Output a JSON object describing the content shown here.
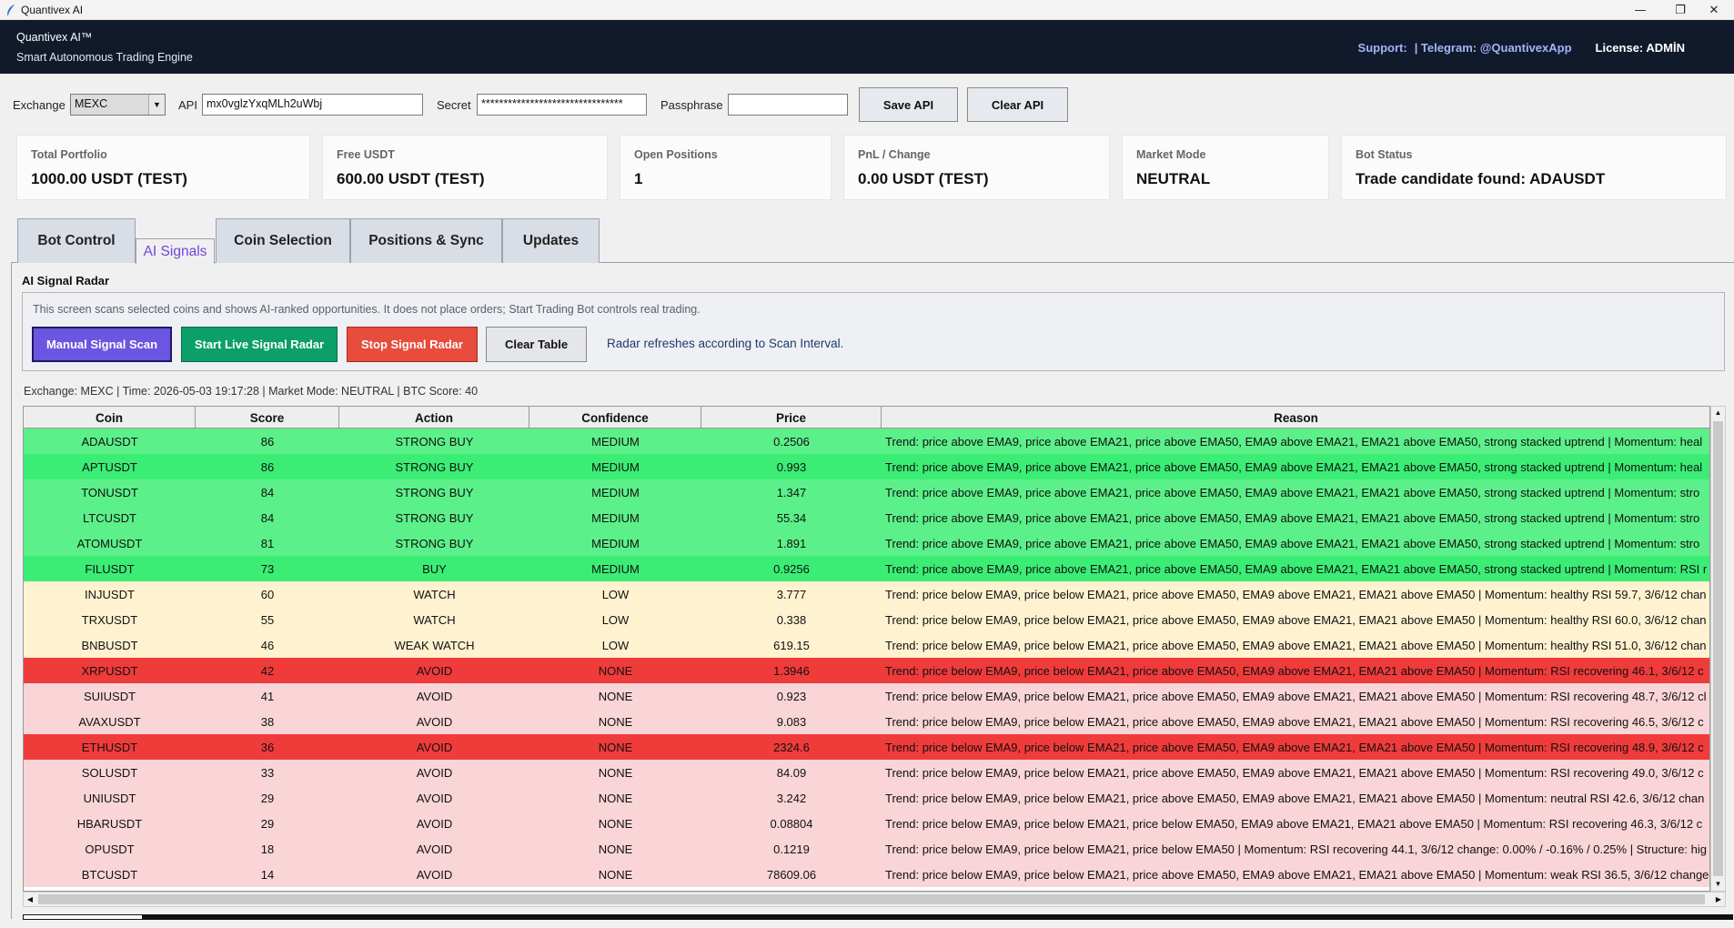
{
  "window": {
    "title": "Quantivex AI"
  },
  "header": {
    "brand": "Quantivex AI™",
    "tagline": "Smart Autonomous Trading Engine",
    "support": "Support:",
    "telegram": "| Telegram: @QuantivexApp",
    "license": "License: ADMİN"
  },
  "api": {
    "exchange_label": "Exchange",
    "exchange_value": "MEXC",
    "api_label": "API",
    "api_value": "mx0vglzYxqMLh2uWbj",
    "secret_label": "Secret",
    "secret_value": "********************************",
    "passphrase_label": "Passphrase",
    "passphrase_value": "",
    "save_label": "Save API",
    "clear_label": "Clear API"
  },
  "cards": [
    {
      "label": "Total Portfolio",
      "value": "1000.00 USDT (TEST)"
    },
    {
      "label": "Free USDT",
      "value": "600.00 USDT (TEST)"
    },
    {
      "label": "Open Positions",
      "value": "1"
    },
    {
      "label": "PnL / Change",
      "value": "0.00 USDT (TEST)"
    },
    {
      "label": "Market Mode",
      "value": "NEUTRAL"
    },
    {
      "label": "Bot Status",
      "value": "Trade candidate found: ADAUSDT"
    }
  ],
  "tabs": [
    "Bot Control",
    "AI Signals",
    "Coin Selection",
    "Positions & Sync",
    "Updates"
  ],
  "signals": {
    "section_title": "AI Signal Radar",
    "info": "This screen scans selected coins and shows AI-ranked opportunities. It does not place orders; Start Trading Bot controls real trading.",
    "manual_scan": "Manual Signal Scan",
    "start_radar": "Start Live Signal Radar",
    "stop_radar": "Stop Signal Radar",
    "clear_table": "Clear Table",
    "radar_note": "Radar refreshes according to Scan Interval.",
    "status_line": "Exchange: MEXC | Time: 2026-05-03 19:17:28 | Market Mode: NEUTRAL | BTC Score: 40"
  },
  "table": {
    "columns": [
      "Coin",
      "Score",
      "Action",
      "Confidence",
      "Price",
      "Reason"
    ],
    "colors": {
      "strong_light": "#5cf08a",
      "strong_dark": "#3bed75",
      "watch": "#fff2d0",
      "avoid_light": "#f9d5d8",
      "avoid_red": "#f03b3b"
    },
    "rows": [
      {
        "coin": "ADAUSDT",
        "score": "86",
        "action": "STRONG BUY",
        "confidence": "MEDIUM",
        "price": "0.2506",
        "reason": "Trend: price above EMA9, price above EMA21, price above EMA50, EMA9 above EMA21, EMA21 above EMA50, strong stacked uptrend | Momentum: heal",
        "tone": "strong_light"
      },
      {
        "coin": "APTUSDT",
        "score": "86",
        "action": "STRONG BUY",
        "confidence": "MEDIUM",
        "price": "0.993",
        "reason": "Trend: price above EMA9, price above EMA21, price above EMA50, EMA9 above EMA21, EMA21 above EMA50, strong stacked uptrend | Momentum: heal",
        "tone": "strong_dark"
      },
      {
        "coin": "TONUSDT",
        "score": "84",
        "action": "STRONG BUY",
        "confidence": "MEDIUM",
        "price": "1.347",
        "reason": "Trend: price above EMA9, price above EMA21, price above EMA50, EMA9 above EMA21, EMA21 above EMA50, strong stacked uptrend | Momentum: stro",
        "tone": "strong_light"
      },
      {
        "coin": "LTCUSDT",
        "score": "84",
        "action": "STRONG BUY",
        "confidence": "MEDIUM",
        "price": "55.34",
        "reason": "Trend: price above EMA9, price above EMA21, price above EMA50, EMA9 above EMA21, EMA21 above EMA50, strong stacked uptrend | Momentum: stro",
        "tone": "strong_light"
      },
      {
        "coin": "ATOMUSDT",
        "score": "81",
        "action": "STRONG BUY",
        "confidence": "MEDIUM",
        "price": "1.891",
        "reason": "Trend: price above EMA9, price above EMA21, price above EMA50, EMA9 above EMA21, EMA21 above EMA50, strong stacked uptrend | Momentum: stro",
        "tone": "strong_light"
      },
      {
        "coin": "FILUSDT",
        "score": "73",
        "action": "BUY",
        "confidence": "MEDIUM",
        "price": "0.9256",
        "reason": "Trend: price above EMA9, price above EMA21, price above EMA50, EMA9 above EMA21, EMA21 above EMA50, strong stacked uptrend | Momentum: RSI r",
        "tone": "strong_dark"
      },
      {
        "coin": "INJUSDT",
        "score": "60",
        "action": "WATCH",
        "confidence": "LOW",
        "price": "3.777",
        "reason": "Trend: price below EMA9, price below EMA21, price above EMA50, EMA9 above EMA21, EMA21 above EMA50 | Momentum: healthy RSI 59.7, 3/6/12 chan",
        "tone": "watch"
      },
      {
        "coin": "TRXUSDT",
        "score": "55",
        "action": "WATCH",
        "confidence": "LOW",
        "price": "0.338",
        "reason": "Trend: price below EMA9, price below EMA21, price above EMA50, EMA9 above EMA21, EMA21 above EMA50 | Momentum: healthy RSI 60.0, 3/6/12 chan",
        "tone": "watch"
      },
      {
        "coin": "BNBUSDT",
        "score": "46",
        "action": "WEAK WATCH",
        "confidence": "LOW",
        "price": "619.15",
        "reason": "Trend: price below EMA9, price below EMA21, price above EMA50, EMA9 above EMA21, EMA21 above EMA50 | Momentum: healthy RSI 51.0, 3/6/12 chan",
        "tone": "watch"
      },
      {
        "coin": "XRPUSDT",
        "score": "42",
        "action": "AVOID",
        "confidence": "NONE",
        "price": "1.3946",
        "reason": "Trend: price below EMA9, price below EMA21, price above EMA50, EMA9 above EMA21, EMA21 above EMA50 | Momentum: RSI recovering 46.1, 3/6/12 c",
        "tone": "avoid_red"
      },
      {
        "coin": "SUIUSDT",
        "score": "41",
        "action": "AVOID",
        "confidence": "NONE",
        "price": "0.923",
        "reason": "Trend: price below EMA9, price below EMA21, price above EMA50, EMA9 above EMA21, EMA21 above EMA50 | Momentum: RSI recovering 48.7, 3/6/12 cl",
        "tone": "avoid_light"
      },
      {
        "coin": "AVAXUSDT",
        "score": "38",
        "action": "AVOID",
        "confidence": "NONE",
        "price": "9.083",
        "reason": "Trend: price below EMA9, price below EMA21, price above EMA50, EMA9 above EMA21, EMA21 above EMA50 | Momentum: RSI recovering 46.5, 3/6/12 c",
        "tone": "avoid_light"
      },
      {
        "coin": "ETHUSDT",
        "score": "36",
        "action": "AVOID",
        "confidence": "NONE",
        "price": "2324.6",
        "reason": "Trend: price below EMA9, price below EMA21, price above EMA50, EMA9 above EMA21, EMA21 above EMA50 | Momentum: RSI recovering 48.9, 3/6/12 c",
        "tone": "avoid_red"
      },
      {
        "coin": "SOLUSDT",
        "score": "33",
        "action": "AVOID",
        "confidence": "NONE",
        "price": "84.09",
        "reason": "Trend: price below EMA9, price below EMA21, price above EMA50, EMA9 above EMA21, EMA21 above EMA50 | Momentum: RSI recovering 49.0, 3/6/12 c",
        "tone": "avoid_light"
      },
      {
        "coin": "UNIUSDT",
        "score": "29",
        "action": "AVOID",
        "confidence": "NONE",
        "price": "3.242",
        "reason": "Trend: price below EMA9, price below EMA21, price above EMA50, EMA9 above EMA21, EMA21 above EMA50 | Momentum: neutral RSI 42.6, 3/6/12 chan",
        "tone": "avoid_light"
      },
      {
        "coin": "HBARUSDT",
        "score": "29",
        "action": "AVOID",
        "confidence": "NONE",
        "price": "0.08804",
        "reason": "Trend: price below EMA9, price below EMA21, price below EMA50, EMA9 above EMA21, EMA21 above EMA50 | Momentum: RSI recovering 46.3, 3/6/12 c",
        "tone": "avoid_light"
      },
      {
        "coin": "OPUSDT",
        "score": "18",
        "action": "AVOID",
        "confidence": "NONE",
        "price": "0.1219",
        "reason": "Trend: price below EMA9, price below EMA21, price below EMA50 | Momentum: RSI recovering 44.1, 3/6/12 change: 0.00% / -0.16% / 0.25% | Structure: hig",
        "tone": "avoid_light"
      },
      {
        "coin": "BTCUSDT",
        "score": "14",
        "action": "AVOID",
        "confidence": "NONE",
        "price": "78609.06",
        "reason": "Trend: price below EMA9, price below EMA21, price above EMA50, EMA9 above EMA21, EMA21 above EMA50 | Momentum: weak RSI 36.5, 3/6/12 change",
        "tone": "avoid_light"
      }
    ]
  },
  "buttons_colors": {
    "manual": "#6c55e0",
    "start": "#0c9f6a",
    "stop": "#e74c3c"
  }
}
